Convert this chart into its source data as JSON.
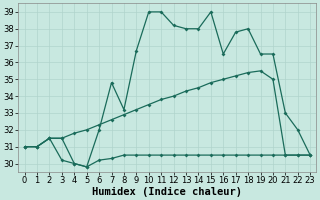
{
  "xlabel": "Humidex (Indice chaleur)",
  "xlim": [
    -0.5,
    23.5
  ],
  "ylim": [
    29.5,
    39.5
  ],
  "yticks": [
    30,
    31,
    32,
    33,
    34,
    35,
    36,
    37,
    38,
    39
  ],
  "xticks": [
    0,
    1,
    2,
    3,
    4,
    5,
    6,
    7,
    8,
    9,
    10,
    11,
    12,
    13,
    14,
    15,
    16,
    17,
    18,
    19,
    20,
    21,
    22,
    23
  ],
  "background_color": "#c8e8e0",
  "grid_color": "#b0d4cc",
  "line_color": "#1a6b5a",
  "line1_y": [
    31,
    31,
    31.5,
    31.5,
    30.0,
    29.8,
    32.0,
    34.8,
    33.2,
    36.7,
    39.0,
    39.0,
    38.2,
    38.0,
    38.0,
    39.0,
    36.5,
    37.8,
    38.0,
    36.5,
    36.5,
    33.0,
    32.0,
    30.5
  ],
  "line2_y": [
    31,
    31,
    31.5,
    31.5,
    31.8,
    32.0,
    32.3,
    32.6,
    32.9,
    33.2,
    33.5,
    33.8,
    34.0,
    34.3,
    34.5,
    34.8,
    35.0,
    35.2,
    35.4,
    35.5,
    35.0,
    30.5,
    30.5,
    30.5
  ],
  "line3_y": [
    31,
    31,
    31.5,
    30.2,
    30.0,
    29.8,
    30.2,
    30.3,
    30.5,
    30.5,
    30.5,
    30.5,
    30.5,
    30.5,
    30.5,
    30.5,
    30.5,
    30.5,
    30.5,
    30.5,
    30.5,
    30.5,
    30.5,
    30.5
  ],
  "tick_fontsize": 6,
  "xlabel_fontsize": 7.5
}
